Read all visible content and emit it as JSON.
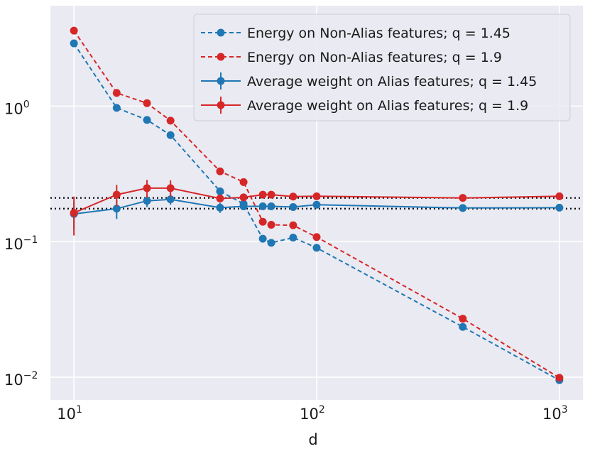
{
  "chart_data": {
    "type": "line",
    "xscale": "log",
    "yscale": "log",
    "xlabel": "d",
    "ylabel": "",
    "xlim": [
      8,
      1250
    ],
    "ylim": [
      0.0068,
      5.5
    ],
    "grid": true,
    "legend_position": "top-right",
    "x_ticks": [
      {
        "value": 10,
        "base": "10",
        "exp": "1"
      },
      {
        "value": 100,
        "base": "10",
        "exp": "2"
      },
      {
        "value": 1000,
        "base": "10",
        "exp": "3"
      }
    ],
    "y_ticks": [
      {
        "value": 1,
        "base": "10",
        "exp": "0"
      },
      {
        "value": 0.1,
        "base": "10",
        "exp": "−1"
      },
      {
        "value": 0.01,
        "base": "10",
        "exp": "−2"
      }
    ],
    "reference_lines": [
      0.21,
      0.175
    ],
    "x": [
      10,
      15,
      20,
      25,
      40,
      50,
      60,
      65,
      80,
      100,
      400,
      1000
    ],
    "series": [
      {
        "name": "Energy on Non-Alias features; q  = 1.45",
        "color": "#1f77b4",
        "style": "dashed",
        "values": [
          2.9,
          0.97,
          0.79,
          0.61,
          0.235,
          0.19,
          0.105,
          0.098,
          0.107,
          0.09,
          0.0235,
          0.0095
        ]
      },
      {
        "name": "Energy on Non-Alias features; q  = 1.9",
        "color": "#d62728",
        "style": "dashed",
        "values": [
          3.6,
          1.25,
          1.05,
          0.78,
          0.33,
          0.275,
          0.14,
          0.133,
          0.132,
          0.108,
          0.027,
          0.0099
        ]
      },
      {
        "name": "Average weight on Alias features; q  = 1.45",
        "color": "#1f77b4",
        "style": "solid",
        "values": [
          0.16,
          0.175,
          0.2,
          0.205,
          0.178,
          0.182,
          0.182,
          0.182,
          0.18,
          0.187,
          0.177,
          0.178
        ],
        "errors": [
          0.037,
          0.028,
          0.02,
          0.018,
          0.015,
          0.009,
          0.005,
          0.005,
          0.004,
          0.004,
          0.003,
          0.002
        ]
      },
      {
        "name": "Average weight on Alias features; q  = 1.9",
        "color": "#d62728",
        "style": "solid",
        "values": [
          0.163,
          0.222,
          0.248,
          0.248,
          0.208,
          0.212,
          0.222,
          0.222,
          0.215,
          0.216,
          0.21,
          0.216
        ],
        "errors": [
          0.052,
          0.04,
          0.037,
          0.035,
          0.012,
          0.009,
          0.005,
          0.005,
          0.004,
          0.004,
          0.003,
          0.002
        ]
      }
    ]
  }
}
